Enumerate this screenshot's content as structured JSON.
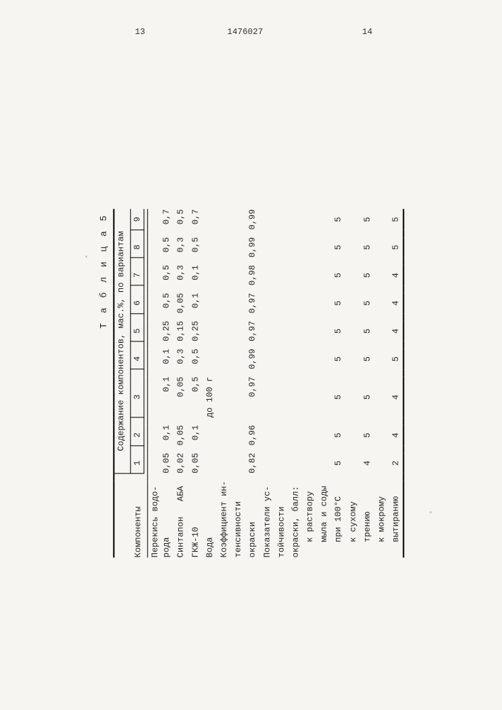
{
  "page_left": "13",
  "doc_id": "1476027",
  "page_right": "14",
  "table_label": "Т а б л и ц а 5",
  "header_rowhead": "Компоненты",
  "header_group": "Содержание компонентов, мас.%, по вариантам",
  "col_nums": [
    "1",
    "2",
    "3",
    "4",
    "5",
    "6",
    "7",
    "8",
    "9"
  ],
  "rows": [
    {
      "type": "data",
      "label": "Перекись водо-\nрода",
      "cells": [
        "0,05",
        "0,1",
        "0,1",
        "0,1",
        "0,25",
        "0,5",
        "0,5",
        "0,5",
        "0,7"
      ],
      "align": "right"
    },
    {
      "type": "data",
      "label": "Синтапон   АБА",
      "cells": [
        "0,02",
        "0,05",
        "0,05",
        "0,3",
        "0,15",
        "0,05",
        "0,3",
        "0,3",
        "0,5"
      ],
      "align": "right"
    },
    {
      "type": "data",
      "label": "ГКЖ-10",
      "cells": [
        "0,05",
        "0,1",
        "0,5",
        "0,5",
        "0,25",
        "0,1",
        "0,1",
        "0,5",
        "0,7"
      ],
      "align": "right"
    },
    {
      "type": "data",
      "label": "Вода",
      "cells": [
        "",
        "",
        "до 100 г",
        "",
        "",
        "",
        "",
        "",
        ""
      ],
      "align": "center"
    },
    {
      "type": "label",
      "label": "Коэффициент ин-"
    },
    {
      "type": "label",
      "label": "тенсивности"
    },
    {
      "type": "data",
      "label": "окраски",
      "cells": [
        "0,82",
        "0,96",
        "0,97",
        "0,99",
        "0,97",
        "0,97",
        "0,98",
        "0,99",
        "0,99"
      ],
      "align": "right"
    },
    {
      "type": "label",
      "label": "Показатели ус-"
    },
    {
      "type": "label",
      "label": "тойчивости"
    },
    {
      "type": "label",
      "label": "окраски, балл:"
    },
    {
      "type": "label",
      "label": "   к раствору"
    },
    {
      "type": "label",
      "label": "   мыла и соды"
    },
    {
      "type": "data",
      "label": "   при 100°С",
      "cells": [
        "5",
        "5",
        "5",
        "5",
        "5",
        "5",
        "5",
        "5",
        "5"
      ],
      "align": "center"
    },
    {
      "type": "label",
      "label": "   к сухому"
    },
    {
      "type": "data",
      "label": "   трению",
      "cells": [
        "4",
        "5",
        "5",
        "5",
        "5",
        "5",
        "5",
        "5",
        "5"
      ],
      "align": "center"
    },
    {
      "type": "label",
      "label": "   к мокрому"
    },
    {
      "type": "data",
      "label": "   вытиранию",
      "cells": [
        "2",
        "4",
        "4",
        "5",
        "4",
        "4",
        "4",
        "5",
        "5"
      ],
      "align": "center",
      "last": true
    }
  ]
}
